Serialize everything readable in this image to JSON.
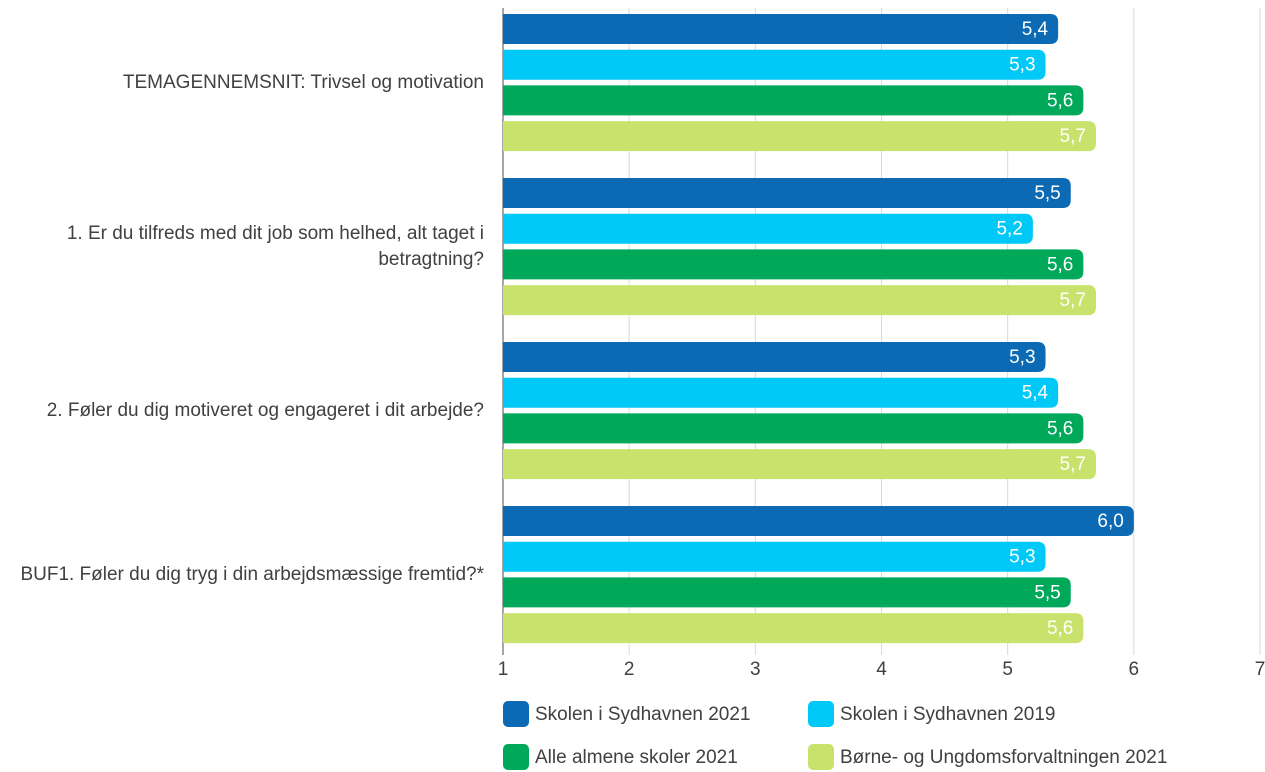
{
  "chart_data": {
    "type": "bar",
    "orientation": "horizontal",
    "categories": [
      "TEMAGENNEMSNIT: Trivsel og motivation",
      "1. Er du tilfreds med dit job som helhed, alt taget i betragtning?",
      "2. Føler du dig motiveret og engageret i dit arbejde?",
      "BUF1. Føler du dig tryg i din arbejdsmæssige fremtid?*"
    ],
    "series": [
      {
        "name": "Skolen i Sydhavnen 2021",
        "color": "#0b6ab3",
        "values": [
          5.4,
          5.5,
          5.3,
          6.0
        ],
        "value_labels": [
          "5,4",
          "5,5",
          "5,3",
          "6,0"
        ]
      },
      {
        "name": "Skolen i Sydhavnen 2019",
        "color": "#00c9f7",
        "values": [
          5.3,
          5.2,
          5.4,
          5.3
        ],
        "value_labels": [
          "5,3",
          "5,2",
          "5,4",
          "5,3"
        ]
      },
      {
        "name": "Alle almene skoler 2021",
        "color": "#00a85a",
        "values": [
          5.6,
          5.6,
          5.6,
          5.5
        ],
        "value_labels": [
          "5,6",
          "5,6",
          "5,6",
          "5,5"
        ]
      },
      {
        "name": "Børne- og Ungdomsforvaltningen 2021",
        "color": "#c9e26b",
        "values": [
          5.7,
          5.7,
          5.7,
          5.6
        ],
        "value_labels": [
          "5,7",
          "5,7",
          "5,7",
          "5,6"
        ]
      }
    ],
    "xlim": [
      1,
      7
    ],
    "xticks": [
      1,
      2,
      3,
      4,
      5,
      6,
      7
    ],
    "grid": true,
    "legend": "bottom"
  }
}
